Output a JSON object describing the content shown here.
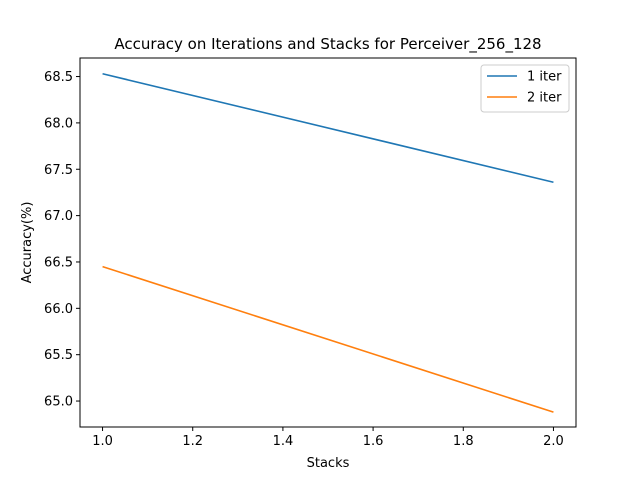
{
  "chart_data": {
    "type": "line",
    "title": "Accuracy on Iterations and Stacks for Perceiver_256_128",
    "xlabel": "Stacks",
    "ylabel": "Accuracy(%)",
    "xlim": [
      0.95,
      2.05
    ],
    "ylim": [
      64.72,
      68.7
    ],
    "xticks": [
      1.0,
      1.2,
      1.4,
      1.6,
      1.8,
      2.0
    ],
    "xtick_labels": [
      "1.0",
      "1.2",
      "1.4",
      "1.6",
      "1.8",
      "2.0"
    ],
    "yticks": [
      65.0,
      65.5,
      66.0,
      66.5,
      67.0,
      67.5,
      68.0,
      68.5
    ],
    "ytick_labels": [
      "65.0",
      "65.5",
      "66.0",
      "66.5",
      "67.0",
      "67.5",
      "68.0",
      "68.5"
    ],
    "grid": false,
    "legend_position": "top-right",
    "series": [
      {
        "name": "1 iter",
        "x": [
          1.0,
          2.0
        ],
        "y": [
          68.53,
          67.36
        ],
        "color": "#1f77b4"
      },
      {
        "name": "2 iter",
        "x": [
          1.0,
          2.0
        ],
        "y": [
          66.45,
          64.88
        ],
        "color": "#ff7f0e"
      }
    ]
  }
}
